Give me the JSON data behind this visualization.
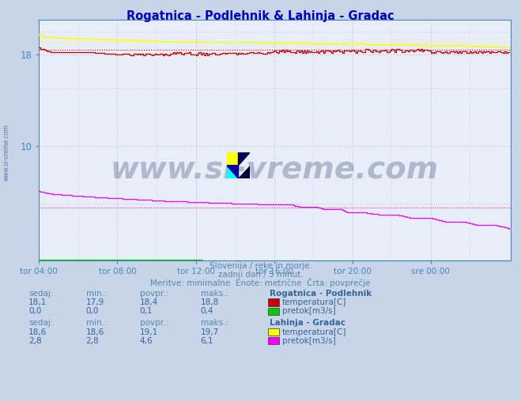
{
  "title": "Rogatnica - Podlehnik & Lahinja - Gradac",
  "title_color": "#0000cc",
  "bg_color": "#c8d4e8",
  "plot_bg_color": "#e8eef8",
  "outer_bg_color": "#dce6f0",
  "xlabel_ticks": [
    "tor 04:00",
    "tor 08:00",
    "tor 12:00",
    "tor 16:00",
    "tor 20:00",
    "sre 00:00"
  ],
  "ytick_positions": [
    10,
    18
  ],
  "ylim": [
    0,
    21
  ],
  "xlim": [
    0,
    289
  ],
  "subtitle1": "Slovenija / reke in morje.",
  "subtitle2": "zadnji dan / 5 minut.",
  "subtitle3": "Meritve: minimalne  Enote: metrične  Črta: povprečje",
  "watermark": "www.si-vreme.com",
  "station1_name": "Rogatnica - Podlehnik",
  "station1_series": [
    {
      "label": "temperatura[C]",
      "color": "#cc0000",
      "sedaj": "18,1",
      "min": "17,9",
      "povpr": "18,4",
      "maks": "18,8"
    },
    {
      "label": "pretok[m3/s]",
      "color": "#00cc00",
      "sedaj": "0,0",
      "min": "0,0",
      "povpr": "0,1",
      "maks": "0,4"
    }
  ],
  "station2_name": "Lahinja - Gradac",
  "station2_series": [
    {
      "label": "temperatura[C]",
      "color": "#ffff00",
      "sedaj": "18,6",
      "min": "18,6",
      "povpr": "19,1",
      "maks": "19,7"
    },
    {
      "label": "pretok[m3/s]",
      "color": "#ff00ff",
      "sedaj": "2,8",
      "min": "2,8",
      "povpr": "4,6",
      "maks": "6,1"
    }
  ],
  "grid_color_major": "#ffaaaa",
  "grid_color_minor": "#ddccdd",
  "vgrid_color": "#ccccdd",
  "axis_color": "#4488bb",
  "tick_label_color": "#4488bb",
  "text_color": "#5588aa",
  "table_text_color": "#336699",
  "watermark_color": "#1a3060",
  "rog_temp_avg": 18.4,
  "rog_flow_avg": 0.1,
  "lah_temp_avg": 19.1,
  "lah_flow_avg": 4.6
}
